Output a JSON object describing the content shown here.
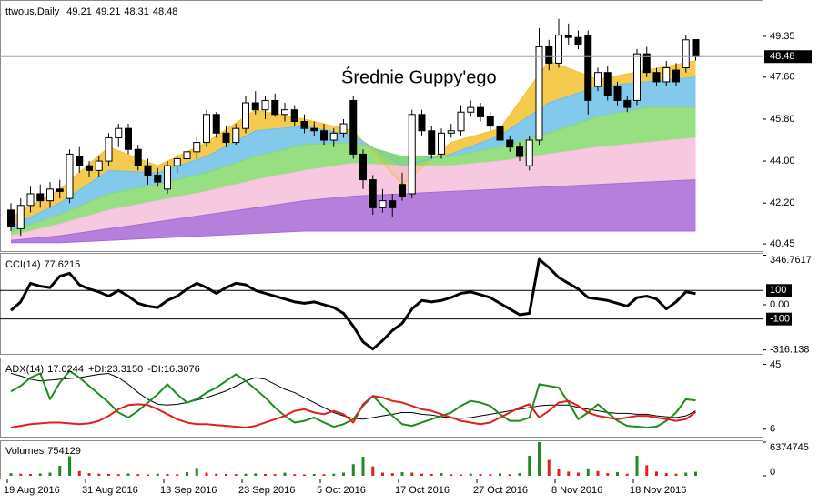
{
  "chart_data": [
    {
      "type": "candlestick",
      "title": "ttwous,Daily",
      "annotation": "Średnie Guppy'ego",
      "categories": [
        "19 Aug 2016",
        null,
        null,
        null,
        null,
        null,
        null,
        null,
        "31 Aug 2016",
        null,
        null,
        null,
        null,
        null,
        null,
        null,
        "13 Sep 2016",
        null,
        null,
        null,
        null,
        null,
        null,
        null,
        "23 Sep 2016",
        null,
        null,
        null,
        null,
        null,
        null,
        null,
        "5 Oct 2016",
        null,
        null,
        null,
        null,
        null,
        null,
        null,
        "17 Oct 2016",
        null,
        null,
        null,
        null,
        null,
        null,
        null,
        "27 Oct 2016",
        null,
        null,
        null,
        null,
        null,
        null,
        null,
        "8 Nov 2016",
        null,
        null,
        null,
        null,
        null,
        null,
        null,
        "18 Nov 2016",
        null,
        null,
        null,
        null,
        null,
        null
      ],
      "open": [
        41.9,
        41.1,
        42.1,
        42.6,
        42.3,
        42.8,
        42.4,
        44.2,
        43.8,
        43.6,
        44.0,
        45.0,
        45.4,
        44.5,
        43.8,
        43.4,
        42.8,
        43.8,
        44.1,
        44.4,
        44.8,
        46.0,
        45.2,
        44.8,
        45.4,
        46.5,
        46.2,
        46.6,
        46.0,
        46.2,
        45.7,
        45.4,
        45.3,
        44.9,
        45.2,
        46.6,
        44.3,
        43.2,
        42.0,
        42.3,
        43.0,
        42.6,
        46.0,
        45.3,
        44.3,
        45.2,
        45.3,
        46.1,
        46.3,
        45.9,
        45.5,
        44.9,
        44.6,
        43.8,
        44.9,
        48.9,
        48.2,
        49.4,
        49.3,
        49.4,
        47.2,
        47.8,
        47.2,
        46.6,
        46.6,
        48.6,
        47.8,
        47.4,
        47.9,
        48.0,
        49.21
      ],
      "high": [
        42.2,
        42.4,
        42.9,
        43.0,
        43.1,
        43.2,
        44.5,
        44.6,
        44.0,
        44.2,
        45.2,
        45.6,
        45.6,
        44.7,
        44.1,
        43.7,
        44.0,
        44.3,
        44.6,
        45.0,
        46.2,
        46.1,
        45.5,
        45.6,
        46.8,
        47.0,
        46.8,
        46.9,
        46.5,
        46.4,
        46.0,
        45.7,
        45.6,
        45.4,
        45.8,
        46.8,
        44.5,
        43.4,
        42.8,
        42.6,
        43.5,
        46.2,
        46.2,
        45.5,
        45.4,
        45.6,
        46.4,
        46.6,
        46.5,
        46.1,
        45.7,
        45.1,
        44.8,
        45.1,
        49.7,
        49.2,
        50.1,
        49.9,
        49.6,
        49.6,
        48.0,
        48.1,
        47.4,
        46.8,
        48.8,
        48.9,
        48.0,
        48.3,
        48.2,
        49.4,
        49.21
      ],
      "low": [
        41.0,
        40.8,
        41.8,
        42.0,
        42.0,
        42.4,
        42.2,
        43.5,
        43.3,
        43.3,
        43.8,
        44.6,
        44.3,
        43.6,
        43.0,
        42.9,
        42.6,
        43.5,
        43.8,
        44.1,
        44.6,
        45.0,
        44.6,
        44.7,
        45.2,
        46.0,
        45.8,
        45.9,
        45.7,
        45.5,
        45.2,
        45.1,
        44.7,
        44.6,
        45.0,
        44.1,
        42.8,
        41.7,
        41.8,
        41.6,
        42.3,
        42.4,
        45.1,
        44.1,
        44.1,
        45.0,
        45.1,
        45.9,
        45.7,
        45.3,
        44.7,
        44.4,
        44.0,
        43.6,
        44.7,
        47.9,
        48.0,
        49.0,
        48.8,
        46.0,
        47.0,
        46.6,
        46.4,
        46.1,
        46.4,
        47.6,
        47.2,
        47.2,
        47.2,
        47.8,
        48.31
      ],
      "close": [
        41.2,
        42.1,
        42.6,
        42.3,
        42.8,
        42.7,
        44.3,
        43.8,
        43.6,
        44.0,
        45.0,
        45.4,
        44.5,
        43.8,
        43.4,
        43.1,
        43.8,
        44.1,
        44.4,
        44.8,
        46.0,
        45.2,
        44.8,
        45.4,
        46.5,
        46.2,
        46.6,
        46.0,
        46.2,
        45.7,
        45.4,
        45.3,
        44.9,
        45.2,
        45.6,
        44.3,
        43.2,
        42.0,
        42.3,
        42.0,
        42.5,
        46.0,
        45.3,
        44.3,
        45.2,
        45.3,
        46.1,
        46.3,
        45.9,
        45.5,
        44.9,
        44.6,
        44.2,
        44.9,
        48.9,
        48.2,
        49.4,
        49.3,
        49.0,
        46.6,
        47.8,
        46.8,
        46.6,
        46.3,
        48.6,
        47.8,
        47.4,
        48.0,
        47.4,
        49.2,
        48.48
      ],
      "up_color": "#ffffff",
      "down_color": "#000000",
      "price_line": true,
      "ylim": [
        40.18,
        50.83
      ],
      "yticks": [
        49.35,
        {
          "value": 47.6,
          "label": "47.60"
        },
        {
          "value": 45.8,
          "label": "45.80"
        },
        {
          "value": 44,
          "label": "44.00"
        },
        {
          "value": 42.2,
          "label": "42.20"
        },
        40.45
      ],
      "guppy": {
        "x": [
          0,
          5,
          10,
          15,
          20,
          25,
          30,
          35,
          40,
          45,
          50,
          55,
          60,
          65,
          70
        ],
        "lines": [
          [
            41.6,
            42.8,
            44.6,
            43.8,
            44.8,
            46.2,
            45.8,
            45.3,
            43.0,
            44.8,
            45.4,
            48.3,
            47.5,
            47.9,
            48.3
          ],
          [
            41.2,
            42.2,
            43.6,
            43.5,
            44.2,
            45.3,
            45.5,
            45.1,
            43.8,
            44.3,
            45.1,
            46.5,
            47.2,
            47.4,
            47.6
          ],
          [
            41.0,
            41.7,
            42.6,
            43.0,
            43.5,
            44.2,
            44.7,
            44.8,
            44.2,
            44.2,
            44.6,
            45.2,
            45.9,
            46.3,
            46.3
          ],
          [
            40.8,
            41.3,
            41.9,
            42.3,
            42.7,
            43.2,
            43.6,
            43.9,
            43.8,
            43.8,
            44.0,
            44.3,
            44.6,
            44.8,
            45.0
          ],
          [
            40.6,
            40.8,
            41.1,
            41.4,
            41.7,
            42.0,
            42.3,
            42.5,
            42.6,
            42.7,
            42.8,
            42.9,
            43.0,
            43.1,
            43.2
          ],
          [
            40.5,
            40.5,
            40.6,
            40.7,
            40.8,
            40.9,
            41.0,
            41.0,
            41.0,
            41.0,
            41.0,
            41.0,
            41.0,
            41.0,
            41.0
          ]
        ],
        "colors": [
          "#f2c230",
          "#6cbfe8",
          "#86d96f",
          "#f5c0dc",
          "#a86ad6"
        ]
      }
    },
    {
      "type": "line",
      "series": [
        {
          "name": "CCI(14)",
          "color": "#000000",
          "values": [
            -40,
            20,
            150,
            130,
            120,
            200,
            220,
            140,
            110,
            90,
            60,
            100,
            60,
            10,
            -10,
            -20,
            30,
            60,
            110,
            150,
            120,
            80,
            120,
            150,
            140,
            100,
            80,
            60,
            40,
            20,
            10,
            20,
            0,
            -20,
            -60,
            -150,
            -260,
            -310,
            -250,
            -180,
            -130,
            -30,
            30,
            20,
            30,
            50,
            80,
            90,
            70,
            50,
            10,
            -30,
            -70,
            -60,
            318,
            260,
            190,
            150,
            110,
            50,
            40,
            30,
            10,
            -10,
            50,
            60,
            40,
            -30,
            20,
            90,
            77.6215
          ]
        }
      ],
      "ylim": [
        -344,
        350
      ],
      "yticks": [
        346.7617,
        {
          "value": 0,
          "label": "0.00"
        },
        -316.138
      ],
      "levels": [
        100,
        -100
      ]
    },
    {
      "type": "line",
      "series": [
        {
          "name": "ADX(14)",
          "color": "#000000",
          "values": [
            39.6,
            38,
            36,
            35,
            35.5,
            36,
            36.5,
            37,
            38,
            39,
            39.5,
            37,
            33,
            28,
            24,
            21,
            20.5,
            21,
            22,
            23.5,
            25,
            27,
            29,
            32,
            35,
            37,
            36,
            33,
            30,
            28,
            25,
            22,
            19,
            16,
            14,
            12.5,
            12,
            13,
            14,
            15,
            16,
            16,
            15,
            14.5,
            13.5,
            13,
            12.5,
            13,
            14,
            15,
            16,
            17,
            18,
            19,
            20,
            20.5,
            20.5,
            20.5,
            19,
            18,
            17,
            16,
            15.5,
            15.5,
            15,
            15,
            14,
            13.5,
            13,
            14,
            17.0244
          ]
        },
        {
          "name": "+DI:",
          "color": "#1e8c1e",
          "values": [
            28.7,
            32,
            37,
            39.6,
            24,
            34,
            41,
            37,
            32,
            27,
            22,
            16,
            13,
            17,
            22,
            27,
            33,
            27,
            22,
            24,
            28,
            31,
            35,
            39,
            35,
            30,
            25,
            19,
            14,
            10,
            11,
            13,
            10,
            7.5,
            9,
            12,
            20,
            26,
            20,
            14,
            9,
            8,
            10,
            12,
            14,
            16,
            20,
            23,
            22,
            20,
            15,
            11,
            11,
            13,
            33,
            32,
            31,
            22,
            12,
            16,
            21,
            16,
            11,
            8,
            7.5,
            7,
            7.5,
            11,
            16,
            24,
            23.315
          ],
          "value_labels": [
            null,
            null,
            null,
            null,
            null,
            null,
            null,
            null,
            null,
            null,
            null,
            null,
            null,
            null,
            null,
            null,
            null,
            null,
            null,
            null,
            null,
            null,
            null,
            null,
            null,
            null,
            null,
            null,
            null,
            null,
            null,
            null,
            null,
            null,
            null,
            null,
            null,
            null,
            null,
            null,
            null,
            null,
            null,
            null,
            null,
            null,
            null,
            null,
            null,
            null,
            null,
            null,
            null,
            null,
            null,
            null,
            null,
            null,
            null,
            null,
            null,
            null,
            null,
            null,
            null,
            null,
            null,
            null,
            null,
            null,
            "23.3150"
          ]
        },
        {
          "name": "-DI:",
          "color": "#e0201c",
          "values": [
            7,
            8,
            9,
            9.5,
            10,
            10,
            9.5,
            9,
            9.5,
            11,
            14,
            18,
            20.5,
            21,
            20.5,
            18,
            15,
            12,
            10,
            9,
            9,
            8.5,
            8,
            7.5,
            7,
            8,
            10,
            12,
            14,
            17,
            18,
            16,
            15,
            17,
            15,
            10,
            21,
            26,
            25,
            23,
            22,
            20,
            18,
            17,
            15,
            13,
            11,
            10,
            9,
            10,
            13,
            16,
            19,
            21,
            13,
            17,
            22,
            23,
            20,
            16,
            14,
            13,
            12,
            13,
            14,
            14,
            13,
            12,
            11,
            12,
            16.3076
          ]
        }
      ],
      "ylim": [
        1.5,
        48
      ],
      "yticks": [
        45,
        6
      ]
    },
    {
      "type": "bar",
      "title": "Volumes",
      "values": [
        500000,
        400000,
        350000,
        450000,
        600000,
        1900000,
        3700000,
        900000,
        500000,
        400000,
        350000,
        300000,
        450000,
        300000,
        250000,
        400000,
        350000,
        300000,
        700000,
        1500000,
        600000,
        400000,
        350000,
        300000,
        400000,
        450000,
        350000,
        300000,
        600000,
        300000,
        250000,
        350000,
        300000,
        400000,
        600000,
        2200000,
        3600000,
        1800000,
        600000,
        500000,
        700000,
        600000,
        400000,
        350000,
        500000,
        300000,
        250000,
        400000,
        350000,
        300000,
        450000,
        300000,
        500000,
        3800000,
        6374745,
        3000000,
        1200000,
        800000,
        600000,
        1400000,
        900000,
        500000,
        700000,
        400000,
        3800000,
        2000000,
        800000,
        500000,
        400000,
        600000,
        754129
      ],
      "up_color": "#1e8c1e",
      "down_color": "#e0201c",
      "ylim": [
        0,
        6374745
      ],
      "yticks": [
        6374745,
        0
      ]
    }
  ]
}
